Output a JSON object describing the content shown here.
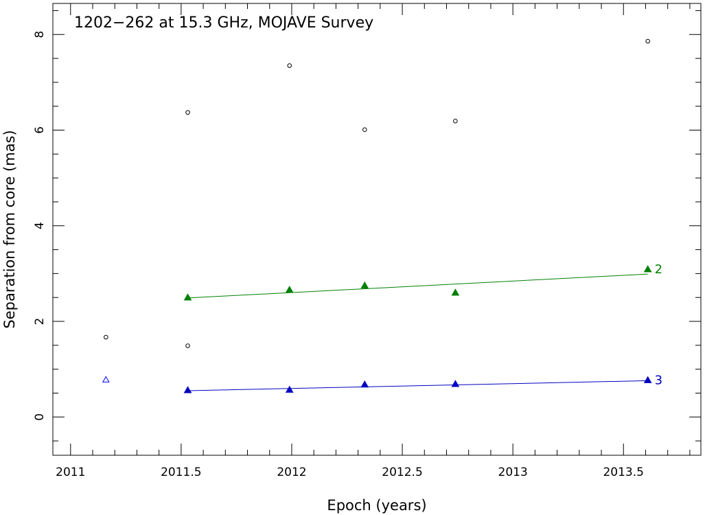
{
  "chart_data": {
    "type": "scatter",
    "title": "1202−262 at 15.3 GHz, MOJAVE Survey",
    "xlabel": "Epoch (years)",
    "ylabel": "Separation from core (mas)",
    "xlim": [
      2010.92,
      2013.85
    ],
    "ylim": [
      -0.8,
      8.65
    ],
    "x_ticks": [
      2011,
      2011.5,
      2012,
      2012.5,
      2013,
      2013.5
    ],
    "x_tick_labels": [
      "2011",
      "2011.5",
      "2012",
      "2012.5",
      "2013",
      "2013.5"
    ],
    "y_ticks": [
      0,
      2,
      4,
      6,
      8
    ],
    "y_tick_labels": [
      "0",
      "2",
      "4",
      "6",
      "8"
    ],
    "grid": false,
    "series": [
      {
        "marker": "open-circle",
        "color": "#000000",
        "points": [
          {
            "x": 2011.16,
            "y": 1.67
          },
          {
            "x": 2011.53,
            "y": 6.37
          },
          {
            "x": 2011.53,
            "y": 1.49
          },
          {
            "x": 2011.99,
            "y": 7.35
          },
          {
            "x": 2012.33,
            "y": 6.01
          },
          {
            "x": 2012.74,
            "y": 6.19
          },
          {
            "x": 2013.61,
            "y": 7.86
          }
        ]
      },
      {
        "name": "2",
        "marker": "filled-triangle",
        "color": "#008000",
        "points": [
          {
            "x": 2011.53,
            "y": 2.5
          },
          {
            "x": 2011.99,
            "y": 2.66
          },
          {
            "x": 2012.33,
            "y": 2.75
          },
          {
            "x": 2012.74,
            "y": 2.6
          },
          {
            "x": 2013.61,
            "y": 3.09
          }
        ],
        "fit": {
          "x": [
            2011.53,
            2013.61
          ],
          "y": [
            2.49,
            2.99
          ]
        }
      },
      {
        "name": "3",
        "marker": "filled-triangle",
        "color": "#0000c0",
        "points": [
          {
            "x": 2011.53,
            "y": 0.56
          },
          {
            "x": 2011.99,
            "y": 0.57
          },
          {
            "x": 2012.33,
            "y": 0.68
          },
          {
            "x": 2012.74,
            "y": 0.69
          },
          {
            "x": 2013.61,
            "y": 0.77
          }
        ],
        "fit": {
          "x": [
            2011.53,
            2013.61
          ],
          "y": [
            0.55,
            0.76
          ]
        }
      },
      {
        "marker": "open-triangle",
        "color": "#0000ff",
        "points": [
          {
            "x": 2011.16,
            "y": 0.78
          }
        ]
      }
    ]
  }
}
